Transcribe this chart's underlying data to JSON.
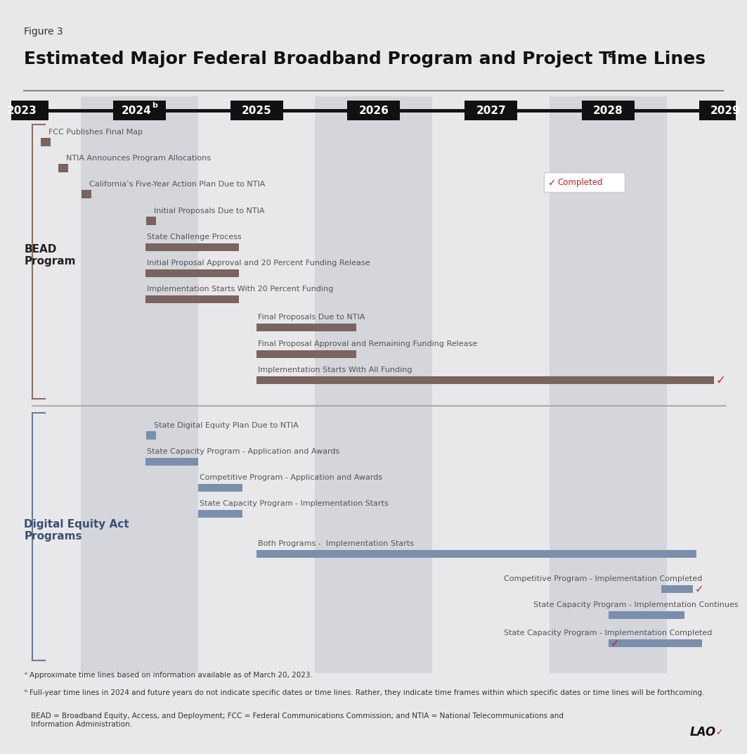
{
  "title_fig": "Figure 3",
  "title_main": "Estimated Major Federal Broadband Program and Project Time Lines",
  "title_sup": "a",
  "years": [
    2023,
    2024,
    2025,
    2026,
    2027,
    2028,
    2029
  ],
  "bg_color": "#e8e8eb",
  "alt_band_color": "#d5d5dc",
  "header_bg": "#111111",
  "header_fg": "#ffffff",
  "bead_bar_color": "#7a6460",
  "dea_bar_color": "#7a8faa",
  "check_color": "#cc2222",
  "label_color": "#555555",
  "bead_section_color": "#222222",
  "dea_section_color": "#3a5070",
  "bracket_bead_color": "#8a7060",
  "bracket_dea_color": "#6a7a90",
  "footnote_a": "Approximate time lines based on information available as of March 20, 2023.",
  "footnote_b": "Full-year time lines in 2024 and future years do not indicate specific dates or time lines. Rather, they indicate time frames within which specific dates or time lines will be forthcoming.",
  "footnote_abbr": "BEAD = Broadband Equity, Access, and Deployment; FCC = Federal Communications Commission; and NTIA = National Telecommunications and\nInformation Administration."
}
